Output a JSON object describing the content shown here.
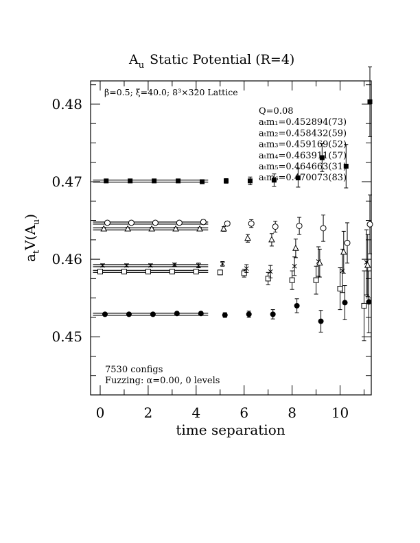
{
  "chart_data": {
    "type": "scatter",
    "title": "Aᵤ Static Potential (R=4)",
    "title_main": "A",
    "title_sub": "u",
    "title_rest": "Static Potential (R=4)",
    "xlabel": "time separation",
    "ylabel": "a_t V(A_u)",
    "xlim": [
      -0.4,
      11.3
    ],
    "ylim": [
      0.4425,
      0.483
    ],
    "xticks": [
      0,
      2,
      4,
      6,
      8,
      10
    ],
    "xtick_labels": [
      "0",
      "2",
      "4",
      "6",
      "8",
      "10"
    ],
    "yticks": [
      0.45,
      0.46,
      0.47,
      0.48
    ],
    "ytick_labels": [
      "0.45",
      "0.46",
      "0.47",
      "0.48"
    ],
    "header_text": "β=0.5; ξ=40.0; 8³×320 Lattice",
    "legend_lines": [
      "Q=0.08",
      "aₜm₁=0.452894(73)",
      "aₜm₂=0.458432(59)",
      "aₜm₃=0.459169(52)",
      "aₜm₄=0.463911(57)",
      "aₜm₅=0.464663(31)",
      "aₜm₆=0.470073(83)"
    ],
    "footer_lines": [
      "7530 configs",
      "Fuzzing: α=0.00, 0 levels"
    ],
    "grid": false,
    "series": [
      {
        "marker": "filled-circle",
        "fit_value": 0.452894,
        "fit_range": [
          -0.3,
          4.5
        ],
        "points": [
          {
            "x": 0.2,
            "y": 0.4529,
            "err": 0.0002
          },
          {
            "x": 1.2,
            "y": 0.4529,
            "err": 0.0002
          },
          {
            "x": 2.2,
            "y": 0.4529,
            "err": 0.0002
          },
          {
            "x": 3.2,
            "y": 0.453,
            "err": 0.0002
          },
          {
            "x": 4.2,
            "y": 0.453,
            "err": 0.0002
          },
          {
            "x": 5.2,
            "y": 0.4528,
            "err": 0.0003
          },
          {
            "x": 6.2,
            "y": 0.4529,
            "err": 0.0004
          },
          {
            "x": 7.2,
            "y": 0.4529,
            "err": 0.0006
          },
          {
            "x": 8.2,
            "y": 0.454,
            "err": 0.0009
          },
          {
            "x": 9.2,
            "y": 0.452,
            "err": 0.0014
          },
          {
            "x": 10.2,
            "y": 0.4544,
            "err": 0.0022
          },
          {
            "x": 11.2,
            "y": 0.4545,
            "err": 0.004
          }
        ]
      },
      {
        "marker": "open-square",
        "fit_value": 0.458432,
        "fit_range": [
          -0.3,
          4.5
        ],
        "points": [
          {
            "x": 0.0,
            "y": 0.4584,
            "err": 0.0002
          },
          {
            "x": 1.0,
            "y": 0.4584,
            "err": 0.0002
          },
          {
            "x": 2.0,
            "y": 0.4584,
            "err": 0.0002
          },
          {
            "x": 3.0,
            "y": 0.4584,
            "err": 0.0002
          },
          {
            "x": 4.0,
            "y": 0.4584,
            "err": 0.0002
          },
          {
            "x": 5.0,
            "y": 0.4583,
            "err": 0.0003
          },
          {
            "x": 6.0,
            "y": 0.4582,
            "err": 0.0005
          },
          {
            "x": 7.0,
            "y": 0.4575,
            "err": 0.0008
          },
          {
            "x": 8.0,
            "y": 0.4573,
            "err": 0.0012
          },
          {
            "x": 9.0,
            "y": 0.4573,
            "err": 0.0018
          },
          {
            "x": 10.0,
            "y": 0.4562,
            "err": 0.0027
          },
          {
            "x": 11.0,
            "y": 0.454,
            "err": 0.0045
          }
        ]
      },
      {
        "marker": "cross",
        "fit_value": 0.459169,
        "fit_range": [
          -0.3,
          4.5
        ],
        "points": [
          {
            "x": 0.1,
            "y": 0.4592,
            "err": 0.0002
          },
          {
            "x": 1.1,
            "y": 0.4592,
            "err": 0.0002
          },
          {
            "x": 2.1,
            "y": 0.4592,
            "err": 0.0002
          },
          {
            "x": 3.1,
            "y": 0.4593,
            "err": 0.0002
          },
          {
            "x": 4.1,
            "y": 0.4592,
            "err": 0.0003
          },
          {
            "x": 5.1,
            "y": 0.4594,
            "err": 0.0003
          },
          {
            "x": 6.1,
            "y": 0.4588,
            "err": 0.0005
          },
          {
            "x": 7.1,
            "y": 0.4584,
            "err": 0.0008
          },
          {
            "x": 8.1,
            "y": 0.4591,
            "err": 0.0012
          },
          {
            "x": 9.1,
            "y": 0.4597,
            "err": 0.0019
          },
          {
            "x": 10.1,
            "y": 0.4585,
            "err": 0.0028
          },
          {
            "x": 11.1,
            "y": 0.4596,
            "err": 0.0042
          }
        ]
      },
      {
        "marker": "open-triangle",
        "fit_value": 0.463911,
        "fit_range": [
          -0.3,
          4.5
        ],
        "points": [
          {
            "x": 0.15,
            "y": 0.4639,
            "err": 0.0002
          },
          {
            "x": 1.15,
            "y": 0.4639,
            "err": 0.0002
          },
          {
            "x": 2.15,
            "y": 0.4639,
            "err": 0.0002
          },
          {
            "x": 3.15,
            "y": 0.4639,
            "err": 0.0002
          },
          {
            "x": 4.15,
            "y": 0.4639,
            "err": 0.0002
          },
          {
            "x": 5.15,
            "y": 0.4639,
            "err": 0.0003
          },
          {
            "x": 6.15,
            "y": 0.4627,
            "err": 0.0005
          },
          {
            "x": 7.15,
            "y": 0.4625,
            "err": 0.0008
          },
          {
            "x": 8.15,
            "y": 0.4614,
            "err": 0.0012
          },
          {
            "x": 9.15,
            "y": 0.4595,
            "err": 0.0018
          },
          {
            "x": 10.15,
            "y": 0.4609,
            "err": 0.0027
          },
          {
            "x": 11.15,
            "y": 0.4592,
            "err": 0.004
          }
        ]
      },
      {
        "marker": "open-circle",
        "fit_value": 0.464663,
        "fit_range": [
          -0.3,
          4.5
        ],
        "points": [
          {
            "x": 0.3,
            "y": 0.4647,
            "err": 0.0002
          },
          {
            "x": 1.3,
            "y": 0.4647,
            "err": 0.0002
          },
          {
            "x": 2.3,
            "y": 0.4647,
            "err": 0.0002
          },
          {
            "x": 3.3,
            "y": 0.4647,
            "err": 0.0002
          },
          {
            "x": 4.3,
            "y": 0.4648,
            "err": 0.0003
          },
          {
            "x": 5.3,
            "y": 0.4646,
            "err": 0.0003
          },
          {
            "x": 6.3,
            "y": 0.4646,
            "err": 0.0005
          },
          {
            "x": 7.3,
            "y": 0.4642,
            "err": 0.0007
          },
          {
            "x": 8.3,
            "y": 0.4643,
            "err": 0.0011
          },
          {
            "x": 9.3,
            "y": 0.464,
            "err": 0.0017
          },
          {
            "x": 10.3,
            "y": 0.4621,
            "err": 0.0026
          },
          {
            "x": 11.3,
            "y": 0.4645,
            "err": 0.0038
          }
        ]
      },
      {
        "marker": "filled-square",
        "fit_value": 0.470073,
        "fit_range": [
          -0.3,
          4.5
        ],
        "points": [
          {
            "x": 0.25,
            "y": 0.4701,
            "err": 0.0002
          },
          {
            "x": 1.25,
            "y": 0.4701,
            "err": 0.0002
          },
          {
            "x": 2.25,
            "y": 0.4701,
            "err": 0.0002
          },
          {
            "x": 3.25,
            "y": 0.4701,
            "err": 0.0002
          },
          {
            "x": 4.25,
            "y": 0.47,
            "err": 0.0002
          },
          {
            "x": 5.25,
            "y": 0.4701,
            "err": 0.0003
          },
          {
            "x": 6.25,
            "y": 0.4701,
            "err": 0.0005
          },
          {
            "x": 7.25,
            "y": 0.4702,
            "err": 0.0008
          },
          {
            "x": 8.25,
            "y": 0.4705,
            "err": 0.0012
          },
          {
            "x": 9.25,
            "y": 0.4731,
            "err": 0.0018
          },
          {
            "x": 10.25,
            "y": 0.472,
            "err": 0.0028
          },
          {
            "x": 11.25,
            "y": 0.4803,
            "err": 0.0045
          }
        ]
      }
    ]
  }
}
